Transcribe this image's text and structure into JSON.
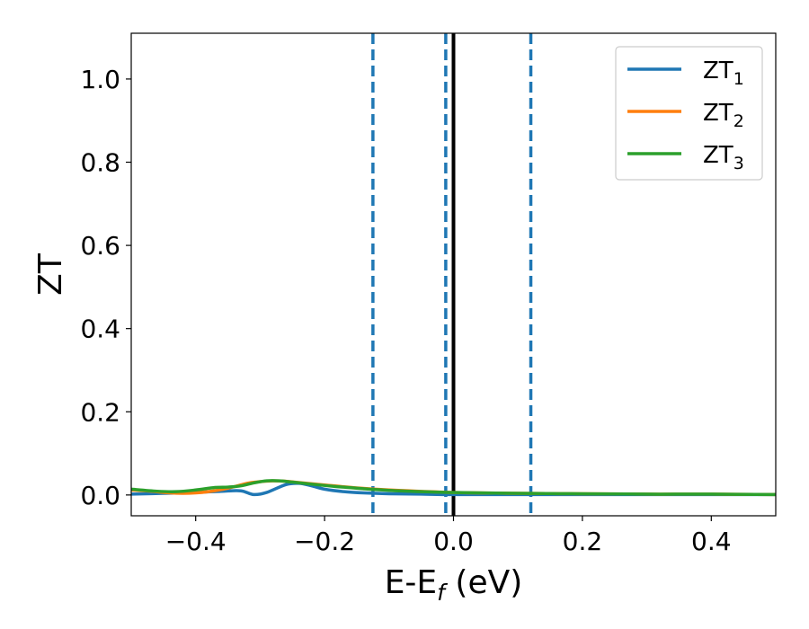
{
  "chart_data": {
    "type": "line",
    "xlabel": {
      "main": "E-E",
      "sub": "f",
      "suffix": " (eV)"
    },
    "ylabel": "ZT",
    "xlim": [
      -0.5,
      0.5
    ],
    "ylim": [
      -0.05,
      1.11
    ],
    "xticks": [
      -0.4,
      -0.2,
      0.0,
      0.2,
      0.4
    ],
    "xtick_labels": [
      "−0.4",
      "−0.2",
      "0.0",
      "0.2",
      "0.4"
    ],
    "yticks": [
      0.0,
      0.2,
      0.4,
      0.6,
      0.8,
      1.0
    ],
    "ytick_labels": [
      "0.0",
      "0.2",
      "0.4",
      "0.6",
      "0.8",
      "1.0"
    ],
    "grid": false,
    "legend_position": "top-right",
    "vlines": [
      {
        "x": -0.125,
        "style": "dashed",
        "color": "#1f77b4"
      },
      {
        "x": -0.012,
        "style": "dashed",
        "color": "#1f77b4"
      },
      {
        "x": 0.12,
        "style": "dashed",
        "color": "#1f77b4"
      },
      {
        "x": 0.0,
        "style": "solid",
        "color": "#000000"
      }
    ],
    "series": [
      {
        "name": "ZT",
        "name_sub": "1",
        "color": "#1f77b4",
        "x": [
          -0.5,
          -0.45,
          -0.4,
          -0.36,
          -0.33,
          -0.31,
          -0.29,
          -0.26,
          -0.24,
          -0.22,
          -0.2,
          -0.17,
          -0.14,
          -0.1,
          -0.05,
          0.0,
          0.1,
          0.2,
          0.3,
          0.4,
          0.5
        ],
        "y": [
          0.002,
          0.004,
          0.006,
          0.009,
          0.01,
          0.001,
          0.006,
          0.025,
          0.028,
          0.022,
          0.014,
          0.008,
          0.005,
          0.003,
          0.002,
          0.001,
          0.001,
          0.001,
          0.001,
          0.001,
          0.001
        ]
      },
      {
        "name": "ZT",
        "name_sub": "2",
        "color": "#ff7f0e",
        "x": [
          -0.5,
          -0.47,
          -0.44,
          -0.42,
          -0.4,
          -0.38,
          -0.36,
          -0.34,
          -0.32,
          -0.3,
          -0.28,
          -0.26,
          -0.24,
          -0.2,
          -0.15,
          -0.1,
          0.0,
          0.1,
          0.2,
          0.3,
          0.4,
          0.5
        ],
        "y": [
          0.012,
          0.009,
          0.005,
          0.004,
          0.005,
          0.008,
          0.013,
          0.02,
          0.028,
          0.032,
          0.034,
          0.033,
          0.03,
          0.024,
          0.017,
          0.012,
          0.006,
          0.004,
          0.003,
          0.002,
          0.002,
          0.001
        ]
      },
      {
        "name": "ZT",
        "name_sub": "3",
        "color": "#2ca02c",
        "x": [
          -0.5,
          -0.46,
          -0.43,
          -0.4,
          -0.37,
          -0.35,
          -0.33,
          -0.31,
          -0.29,
          -0.27,
          -0.25,
          -0.22,
          -0.18,
          -0.14,
          -0.1,
          -0.05,
          0.0,
          0.1,
          0.2,
          0.3,
          0.4,
          0.5
        ],
        "y": [
          0.014,
          0.009,
          0.008,
          0.012,
          0.018,
          0.019,
          0.022,
          0.029,
          0.034,
          0.034,
          0.031,
          0.026,
          0.02,
          0.015,
          0.011,
          0.008,
          0.006,
          0.004,
          0.003,
          0.002,
          0.002,
          0.001
        ]
      }
    ]
  }
}
